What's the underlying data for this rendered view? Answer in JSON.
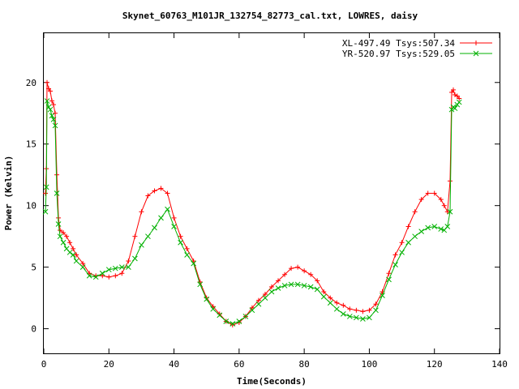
{
  "chart_data": {
    "type": "line",
    "title": "Skynet_60763_M101JR_132754_82773_cal.txt, LOWRES, daisy",
    "xlabel": "Time(Seconds)",
    "ylabel": "Power (Kelvin)",
    "xlim": [
      0,
      140
    ],
    "ylim": [
      -2,
      24
    ],
    "x_ticks": [
      0,
      20,
      40,
      60,
      80,
      100,
      120,
      140
    ],
    "y_ticks": [
      0,
      5,
      10,
      15,
      20
    ],
    "grid": false,
    "legend_position": "top-right",
    "series": [
      {
        "name": "XL-497.49 Tsys:507.34",
        "color": "#ff0000",
        "marker": "plus",
        "x": [
          0.5,
          0.8,
          1.0,
          1.5,
          2.0,
          2.5,
          3.0,
          3.5,
          4.0,
          4.5,
          5,
          6,
          7,
          8,
          9,
          10,
          12,
          14,
          16,
          18,
          20,
          22,
          24,
          26,
          28,
          30,
          32,
          34,
          36,
          38,
          40,
          42,
          44,
          46,
          48,
          50,
          52,
          54,
          56,
          58,
          60,
          62,
          64,
          66,
          68,
          70,
          72,
          74,
          76,
          78,
          80,
          82,
          84,
          86,
          88,
          90,
          92,
          94,
          96,
          98,
          100,
          102,
          104,
          106,
          108,
          110,
          112,
          114,
          116,
          118,
          120,
          122,
          123,
          124,
          124.8,
          125.3,
          125.8,
          126.3,
          127,
          127.6
        ],
        "y": [
          11,
          13,
          20,
          19.5,
          19.3,
          18.5,
          18.2,
          17.5,
          12.5,
          9,
          8,
          7.8,
          7.5,
          7,
          6.5,
          6,
          5.3,
          4.5,
          4.3,
          4.3,
          4.2,
          4.3,
          4.5,
          5.5,
          7.5,
          9.5,
          10.8,
          11.2,
          11.4,
          11,
          9,
          7.5,
          6.5,
          5.5,
          3.8,
          2.5,
          1.8,
          1.2,
          0.6,
          0.3,
          0.5,
          1.0,
          1.7,
          2.3,
          2.8,
          3.4,
          3.9,
          4.4,
          4.9,
          5.0,
          4.7,
          4.4,
          3.9,
          3.0,
          2.5,
          2.1,
          1.9,
          1.6,
          1.5,
          1.4,
          1.5,
          2.0,
          3.0,
          4.5,
          6.0,
          7.0,
          8.3,
          9.5,
          10.5,
          11.0,
          11.0,
          10.5,
          10.0,
          9.5,
          12,
          19.2,
          19.4,
          19.0,
          18.9,
          18.7
        ]
      },
      {
        "name": "YR-520.97 Tsys:529.05",
        "color": "#00b000",
        "marker": "cross",
        "x": [
          0.5,
          0.8,
          1.0,
          1.5,
          2.0,
          2.5,
          3.0,
          3.5,
          4.0,
          4.5,
          5,
          6,
          7,
          8,
          9,
          10,
          12,
          14,
          16,
          18,
          20,
          22,
          24,
          26,
          28,
          30,
          32,
          34,
          36,
          38,
          40,
          42,
          44,
          46,
          48,
          50,
          52,
          54,
          56,
          58,
          60,
          62,
          64,
          66,
          68,
          70,
          72,
          74,
          76,
          78,
          80,
          82,
          84,
          86,
          88,
          90,
          92,
          94,
          96,
          98,
          100,
          102,
          104,
          106,
          108,
          110,
          112,
          114,
          116,
          118,
          120,
          122,
          123,
          124,
          124.8,
          125.3,
          125.8,
          126.3,
          127,
          127.6
        ],
        "y": [
          9.5,
          11.5,
          18.5,
          18.0,
          17.8,
          17.3,
          17.0,
          16.5,
          11,
          8.5,
          7.5,
          7.0,
          6.5,
          6.2,
          6.0,
          5.5,
          5.0,
          4.3,
          4.2,
          4.5,
          4.8,
          4.9,
          5.0,
          5.0,
          5.7,
          6.8,
          7.5,
          8.2,
          9.0,
          9.7,
          8.3,
          7.0,
          6.0,
          5.3,
          3.6,
          2.4,
          1.6,
          1.1,
          0.6,
          0.4,
          0.6,
          1.0,
          1.5,
          2.0,
          2.5,
          3.0,
          3.3,
          3.5,
          3.6,
          3.6,
          3.5,
          3.4,
          3.2,
          2.6,
          2.1,
          1.6,
          1.2,
          1.0,
          0.9,
          0.8,
          0.9,
          1.5,
          2.7,
          4.0,
          5.2,
          6.2,
          7.0,
          7.5,
          7.9,
          8.2,
          8.3,
          8.1,
          8.0,
          8.3,
          9.5,
          17.8,
          18.0,
          17.9,
          18.2,
          18.4
        ]
      }
    ]
  }
}
